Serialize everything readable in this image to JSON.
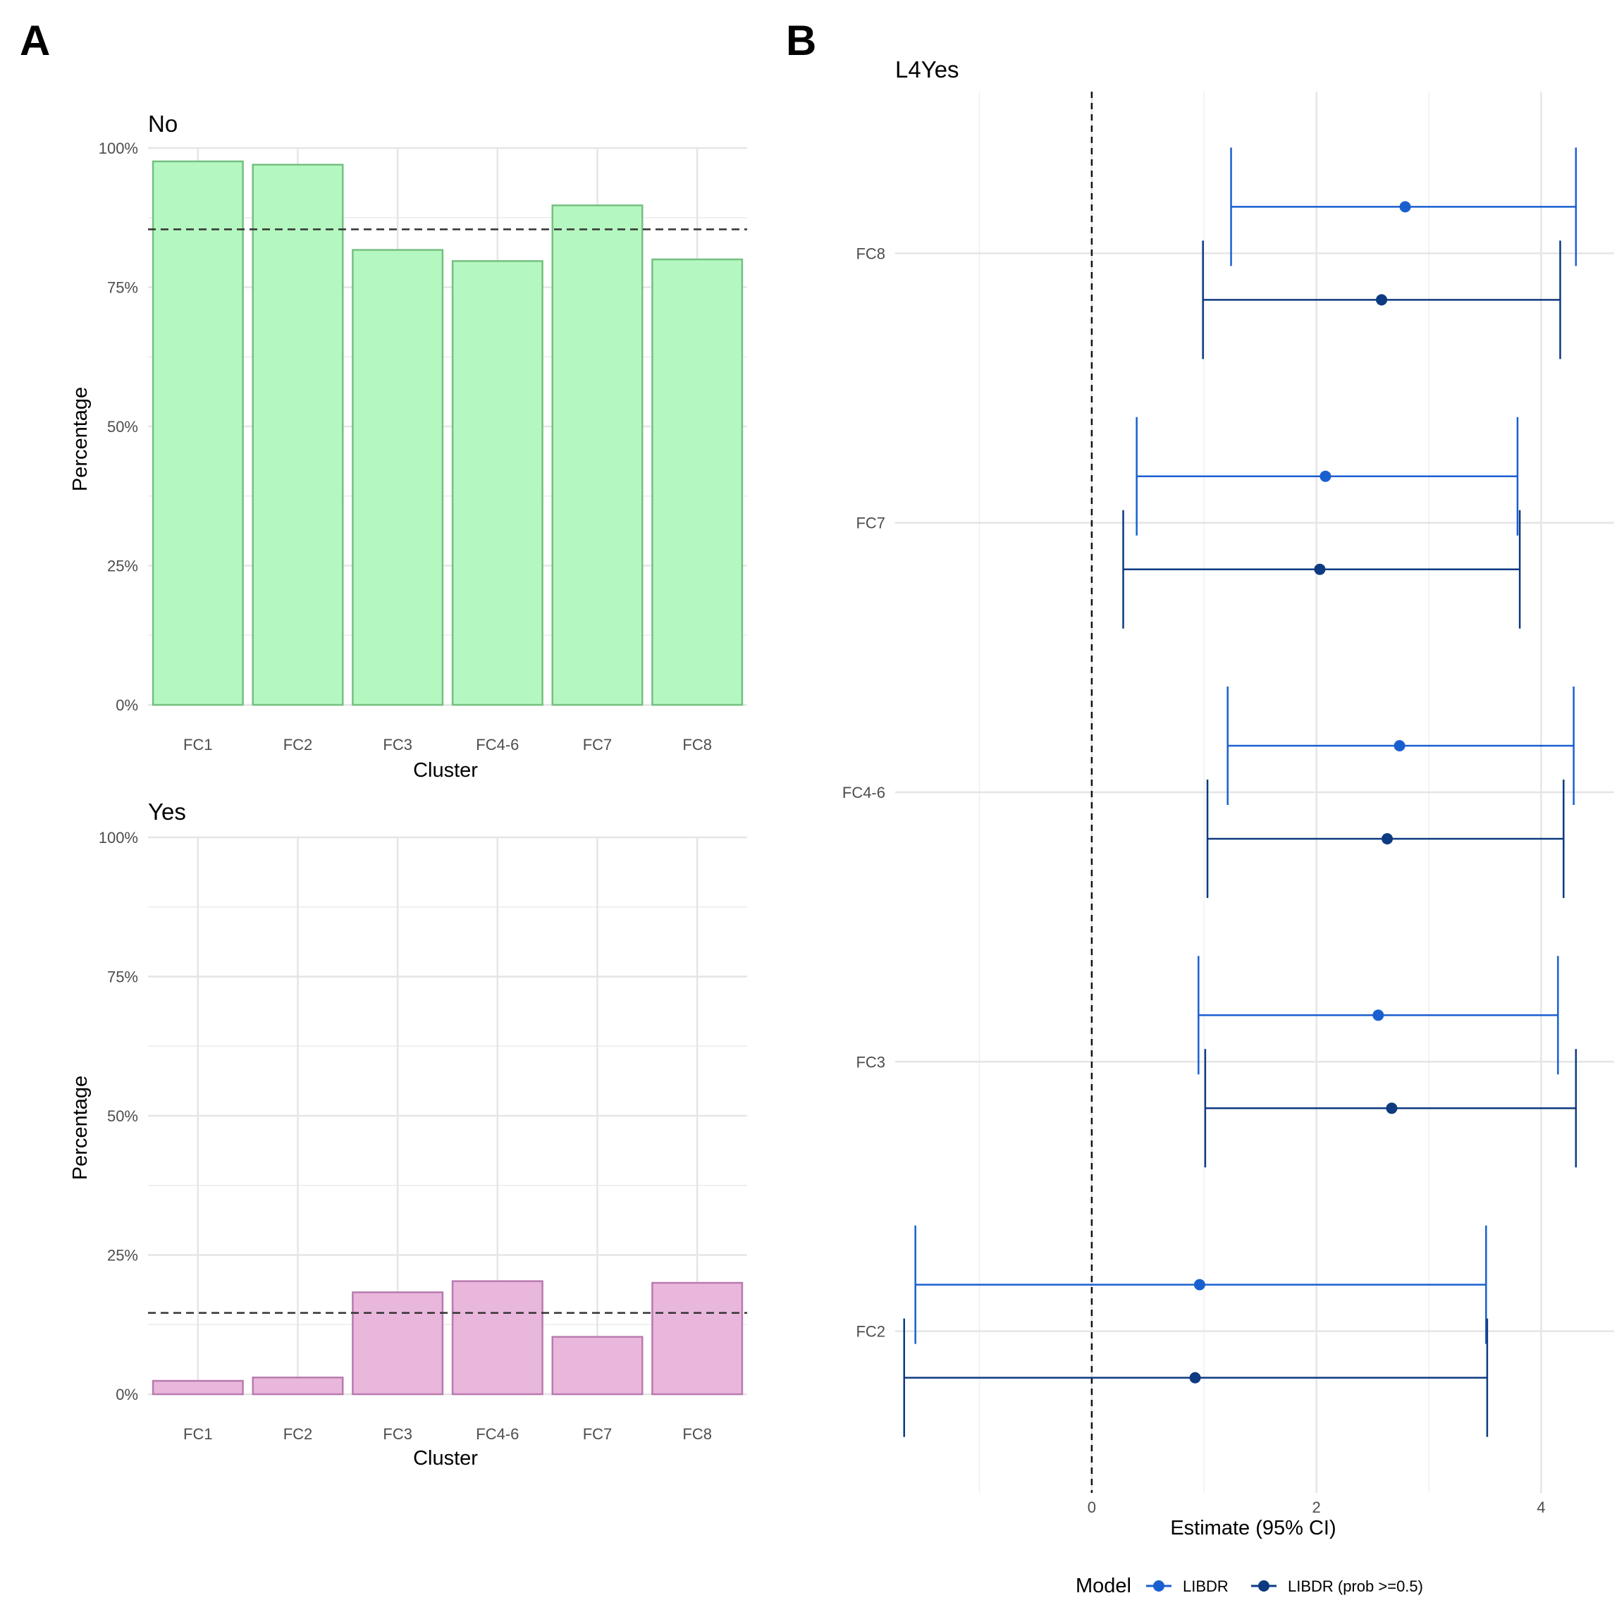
{
  "panels": {
    "a_label": "A",
    "b_label": "B"
  },
  "chart_data": [
    {
      "type": "bar",
      "title": "No",
      "xlabel": "Cluster",
      "ylabel": "Percentage",
      "categories": [
        "FC1",
        "FC2",
        "FC3",
        "FC4-6",
        "FC7",
        "FC8"
      ],
      "values": [
        97.6,
        97.0,
        81.7,
        79.7,
        89.7,
        80.0
      ],
      "reference_line": 85.4,
      "ylim": [
        0,
        100
      ],
      "yticks": [
        0,
        25,
        50,
        75,
        100
      ],
      "ytick_labels": [
        "0%",
        "25%",
        "50%",
        "75%",
        "100%"
      ],
      "fill": "#b5f7c0",
      "stroke": "#74c081",
      "grid": true
    },
    {
      "type": "bar",
      "title": "Yes",
      "xlabel": "Cluster",
      "ylabel": "Percentage",
      "categories": [
        "FC1",
        "FC2",
        "FC3",
        "FC4-6",
        "FC7",
        "FC8"
      ],
      "values": [
        2.4,
        3.0,
        18.3,
        20.3,
        10.3,
        20.0
      ],
      "reference_line": 14.6,
      "ylim": [
        0,
        100
      ],
      "yticks": [
        0,
        25,
        50,
        75,
        100
      ],
      "ytick_labels": [
        "0%",
        "25%",
        "50%",
        "75%",
        "100%"
      ],
      "fill": "#eab7dc",
      "stroke": "#b97aaf",
      "grid": true
    },
    {
      "type": "scatter",
      "subtype": "forest",
      "title": "L4Yes",
      "xlabel": "Estimate (95% CI)",
      "ylabel": "",
      "categories": [
        "FC2",
        "FC3",
        "FC4-6",
        "FC7",
        "FC8"
      ],
      "xlim": [
        -1.75,
        4.65
      ],
      "xticks": [
        0,
        2,
        4
      ],
      "xtick_labels": [
        "0",
        "2",
        "4"
      ],
      "reference_line": 0,
      "grid": true,
      "legend": {
        "title": "Model",
        "position": "bottom"
      },
      "series": [
        {
          "name": "LIBDR",
          "color": "#1a5fd0",
          "estimate": [
            0.96,
            2.55,
            2.74,
            2.08,
            2.79
          ],
          "lower": [
            -1.57,
            0.95,
            1.21,
            0.4,
            1.24
          ],
          "upper": [
            3.51,
            4.15,
            4.29,
            3.79,
            4.31
          ]
        },
        {
          "name": "LIBDR (prob >=0.5)",
          "color": "#0d3a80",
          "estimate": [
            0.92,
            2.67,
            2.63,
            2.03,
            2.58
          ],
          "lower": [
            -1.67,
            1.01,
            1.03,
            0.28,
            0.99
          ],
          "upper": [
            3.52,
            4.31,
            4.2,
            3.81,
            4.17
          ]
        }
      ]
    }
  ]
}
